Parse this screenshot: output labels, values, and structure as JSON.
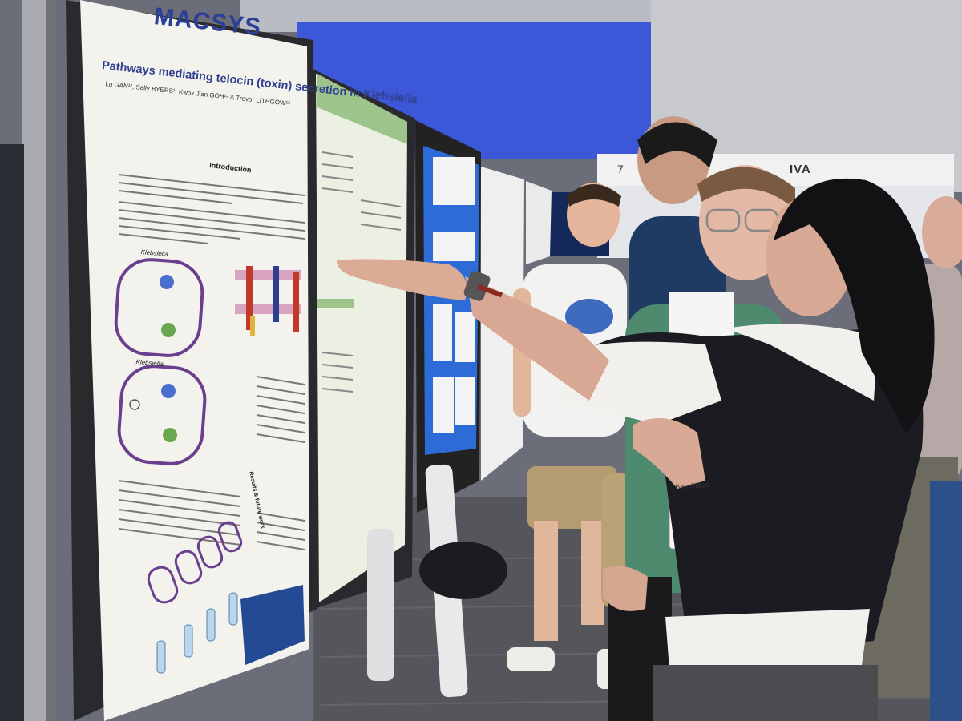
{
  "scene": {
    "description_tags": [
      "poster-session",
      "conference",
      "presenter-gesturing"
    ],
    "colors": {
      "poster_bg": "#f3f2ec",
      "accent_blue": "#2b3f98",
      "panel_border": "#2a2a2e",
      "carpet": "#55565c",
      "wall_blue": "#3c57d8"
    }
  },
  "poster": {
    "logo": "MACSYS",
    "title": "Pathways mediating telocin (toxin) secretion in Klebsiella",
    "authors": "Lu GAN¹², Sally BYERS¹, Kwok Jian GOH¹² & Trevor LITHGOW¹²",
    "intro_heading": "Introduction",
    "klebsiella_label_1": "Klebsiella",
    "klebsiella_label_2": "Klebsiella",
    "results_heading": "Results & future work"
  },
  "background": {
    "booth_number": "7",
    "booth_sign": "IVA"
  },
  "badge": {
    "name": "Ben Clifton"
  }
}
